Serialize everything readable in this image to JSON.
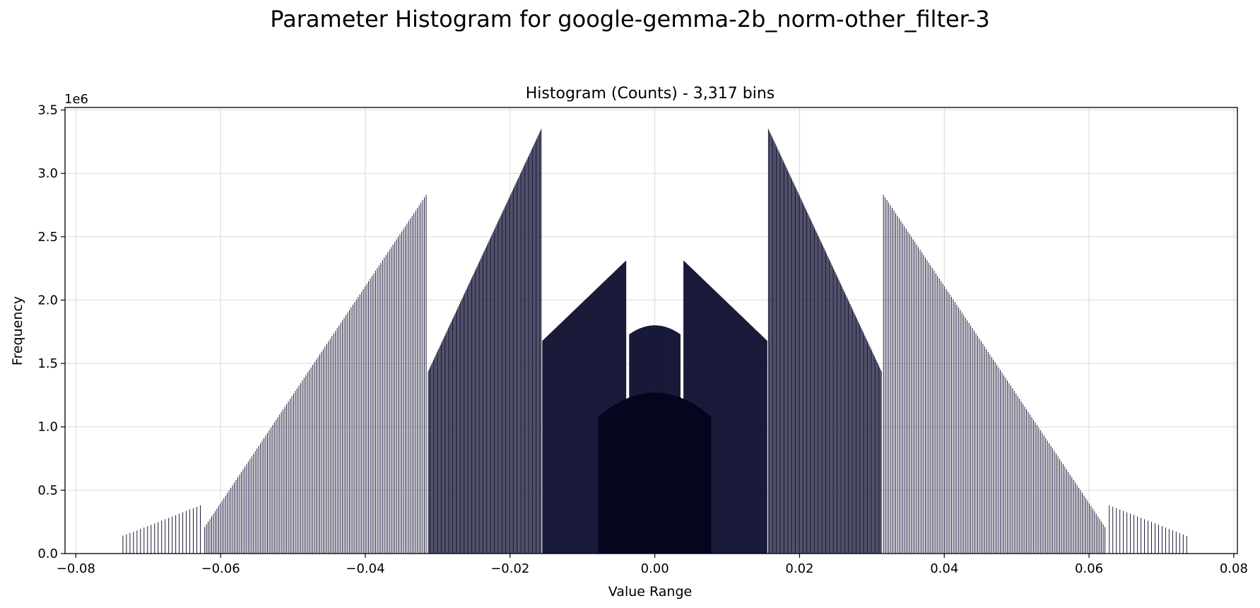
{
  "figure": {
    "suptitle": "Parameter Histogram for google-gemma-2b_norm-other_filter-3"
  },
  "chart_data": {
    "type": "bar",
    "title": "Histogram (Counts) - 3,317 bins",
    "xlabel": "Value Range",
    "ylabel": "Frequency",
    "y_offset_text": "1e6",
    "xlim": [
      -0.0815,
      0.0805
    ],
    "ylim": [
      0,
      3.52
    ],
    "y_unit_multiplier": 1000000,
    "xticks": [
      -0.08,
      -0.06,
      -0.04,
      -0.02,
      0.0,
      0.02,
      0.04,
      0.06,
      0.08
    ],
    "xtick_labels": [
      "−0.08",
      "−0.06",
      "−0.04",
      "−0.02",
      "0.00",
      "0.02",
      "0.04",
      "0.06",
      "0.08"
    ],
    "yticks": [
      0,
      0.5,
      1.0,
      1.5,
      2.0,
      2.5,
      3.0,
      3.5
    ],
    "ytick_labels": [
      "0.0",
      "0.5",
      "1.0",
      "1.5",
      "2.0",
      "2.5",
      "3.0",
      "3.5"
    ],
    "grid": true,
    "bar_color": "#1a1a3a",
    "bin_count": 3317,
    "series": [
      {
        "segments": [
          {
            "x_range": [
              -0.0735,
              -0.0628
            ],
            "y_at_start": 0.14,
            "y_at_end": 0.38,
            "bar_spacing": 0.00049
          },
          {
            "x_range": [
              -0.0622,
              -0.0316
            ],
            "y_at_start": 0.21,
            "y_at_end": 2.83,
            "bar_spacing": 0.00024
          },
          {
            "x_range": [
              -0.0313,
              -0.0157
            ],
            "y_at_start": 1.44,
            "y_at_end": 3.35,
            "bar_spacing": 0.00012
          },
          {
            "x_range": [
              -0.0155,
              -0.004
            ],
            "y_at_start": 1.68,
            "y_at_end": 2.31,
            "bar_spacing": 6e-05
          },
          {
            "x_range": [
              -0.0035,
              0.0035
            ],
            "y_at_start": 1.73,
            "y_at_end": 1.73,
            "y_peak": 1.8,
            "bar_spacing": 3e-05
          },
          {
            "x_range": [
              0.004,
              0.0155
            ],
            "y_at_start": 2.31,
            "y_at_end": 1.68,
            "bar_spacing": 6e-05
          },
          {
            "x_range": [
              0.0157,
              0.0313
            ],
            "y_at_start": 3.35,
            "y_at_end": 1.44,
            "bar_spacing": 0.00012
          },
          {
            "x_range": [
              0.0316,
              0.0622
            ],
            "y_at_start": 2.83,
            "y_at_end": 0.21,
            "bar_spacing": 0.00024
          },
          {
            "x_range": [
              0.0628,
              0.0735
            ],
            "y_at_start": 0.38,
            "y_at_end": 0.14,
            "bar_spacing": 0.00049
          }
        ],
        "inner_floor": {
          "x_range": [
            -0.0078,
            0.0078
          ],
          "y_at_edges": 1.08,
          "y_at_center": 1.27
        }
      }
    ]
  }
}
